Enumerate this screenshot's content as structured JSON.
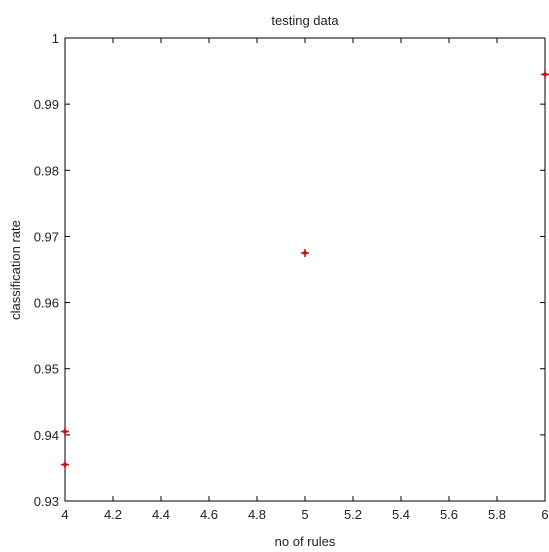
{
  "chart_data": {
    "type": "scatter",
    "title": "testing data",
    "xlabel": "no of rules",
    "ylabel": "classification rate",
    "xlim": [
      4,
      6
    ],
    "ylim": [
      0.93,
      1
    ],
    "xticks": [
      4,
      4.2,
      4.4,
      4.6,
      4.8,
      5,
      5.2,
      5.4,
      5.6,
      5.8,
      6
    ],
    "xtick_labels": [
      "4",
      "4.2",
      "4.4",
      "4.6",
      "4.8",
      "5",
      "5.2",
      "5.4",
      "5.6",
      "5.8",
      "6"
    ],
    "yticks": [
      0.93,
      0.94,
      0.95,
      0.96,
      0.97,
      0.98,
      0.99,
      1
    ],
    "ytick_labels": [
      "0.93",
      "0.94",
      "0.95",
      "0.96",
      "0.97",
      "0.98",
      "0.99",
      "1"
    ],
    "grid": false,
    "marker_color": "#cc1111",
    "points": [
      {
        "x": 4,
        "y": 0.9405
      },
      {
        "x": 4,
        "y": 0.9355
      },
      {
        "x": 5,
        "y": 0.9675
      },
      {
        "x": 6,
        "y": 0.9945
      }
    ]
  }
}
